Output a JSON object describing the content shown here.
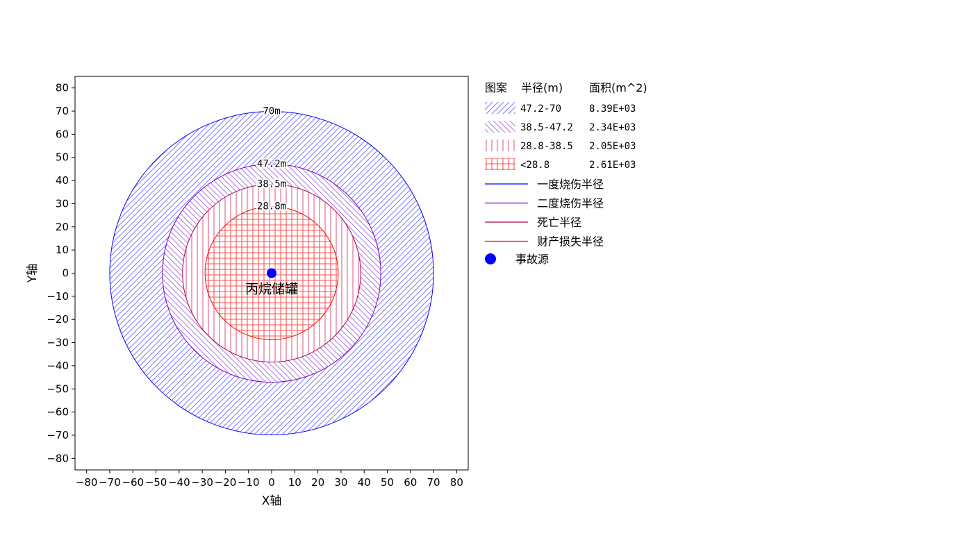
{
  "chart_data": {
    "type": "contour-rings",
    "xlabel": "X轴",
    "ylabel": "Y轴",
    "xlim": [
      -85,
      85
    ],
    "ylim": [
      -85,
      85
    ],
    "ticks": [
      -80,
      -70,
      -60,
      -50,
      -40,
      -30,
      -20,
      -10,
      0,
      10,
      20,
      30,
      40,
      50,
      60,
      70,
      80
    ],
    "tick_labels": [
      "−80",
      "−70",
      "−60",
      "−50",
      "−40",
      "−30",
      "−20",
      "−10",
      "0",
      "10",
      "20",
      "30",
      "40",
      "50",
      "60",
      "70",
      "80"
    ],
    "source": {
      "x": 0,
      "y": 0,
      "label": "丙烷储罐",
      "color": "#0000ff"
    },
    "rings": [
      {
        "radius": 70,
        "label": "70m",
        "line_color": "#0000ff",
        "hatch": "diag-fwd",
        "hatch_color": "#8080ff"
      },
      {
        "radius": 47.2,
        "label": "47.2m",
        "line_color": "#7a00c8",
        "hatch": "diag-back",
        "hatch_color": "#b080e0"
      },
      {
        "radius": 38.5,
        "label": "38.5m",
        "line_color": "#aa0050",
        "hatch": "vertical",
        "hatch_color": "#e06088"
      },
      {
        "radius": 28.8,
        "label": "28.8m",
        "line_color": "#ff0000",
        "hatch": "grid",
        "hatch_color": "#ff5050"
      }
    ]
  },
  "legend": {
    "header": {
      "pattern": "图案",
      "radius": "半径(m)",
      "area": "面积(m^2)"
    },
    "zones": [
      {
        "hatch": "diag-fwd",
        "hatch_color": "#8080ff",
        "radius": "47.2-70",
        "area": "8.39E+03"
      },
      {
        "hatch": "diag-back",
        "hatch_color": "#b080e0",
        "radius": "38.5-47.2",
        "area": "2.34E+03"
      },
      {
        "hatch": "vertical",
        "hatch_color": "#e06088",
        "radius": "28.8-38.5",
        "area": "2.05E+03"
      },
      {
        "hatch": "grid",
        "hatch_color": "#ff5050",
        "radius": "<28.8",
        "area": "2.61E+03"
      }
    ],
    "lines": [
      {
        "label": "一度烧伤半径",
        "color": "#0000ff"
      },
      {
        "label": "二度烧伤半径",
        "color": "#7a00c8"
      },
      {
        "label": "死亡半径",
        "color": "#aa0050"
      },
      {
        "label": "财产损失半径",
        "color": "#ff0000"
      }
    ],
    "marker": {
      "label": "事故源",
      "color": "#0000ff"
    }
  }
}
